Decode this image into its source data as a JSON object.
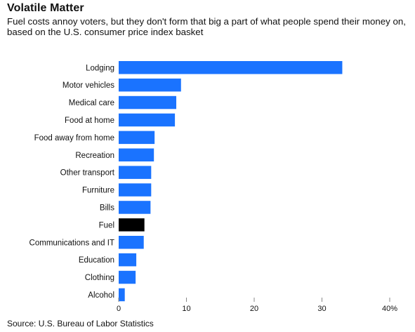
{
  "chart_data": {
    "type": "bar",
    "orientation": "horizontal",
    "title": "Volatile Matter",
    "subtitle": "Fuel costs annoy voters, but they don't form that big a part of what people spend their money on, based on the U.S. consumer price index basket",
    "source": "Source: U.S. Bureau of Labor Statistics",
    "categories": [
      "Lodging",
      "Motor vehicles",
      "Medical care",
      "Food at home",
      "Food away from home",
      "Recreation",
      "Other transport",
      "Furniture",
      "Bills",
      "Fuel",
      "Communications and IT",
      "Education",
      "Clothing",
      "Alcohol"
    ],
    "values": [
      33.0,
      9.2,
      8.5,
      8.3,
      5.3,
      5.2,
      4.8,
      4.8,
      4.7,
      3.8,
      3.7,
      2.6,
      2.5,
      0.9
    ],
    "highlight_category": "Fuel",
    "xlim": [
      0,
      40
    ],
    "xticks": [
      0,
      10,
      20,
      30,
      40
    ],
    "xtick_labels": [
      "0",
      "10",
      "20",
      "30",
      "40%"
    ],
    "grid": false,
    "colors": {
      "bar": "#1a73ff",
      "highlight": "#000000"
    }
  }
}
